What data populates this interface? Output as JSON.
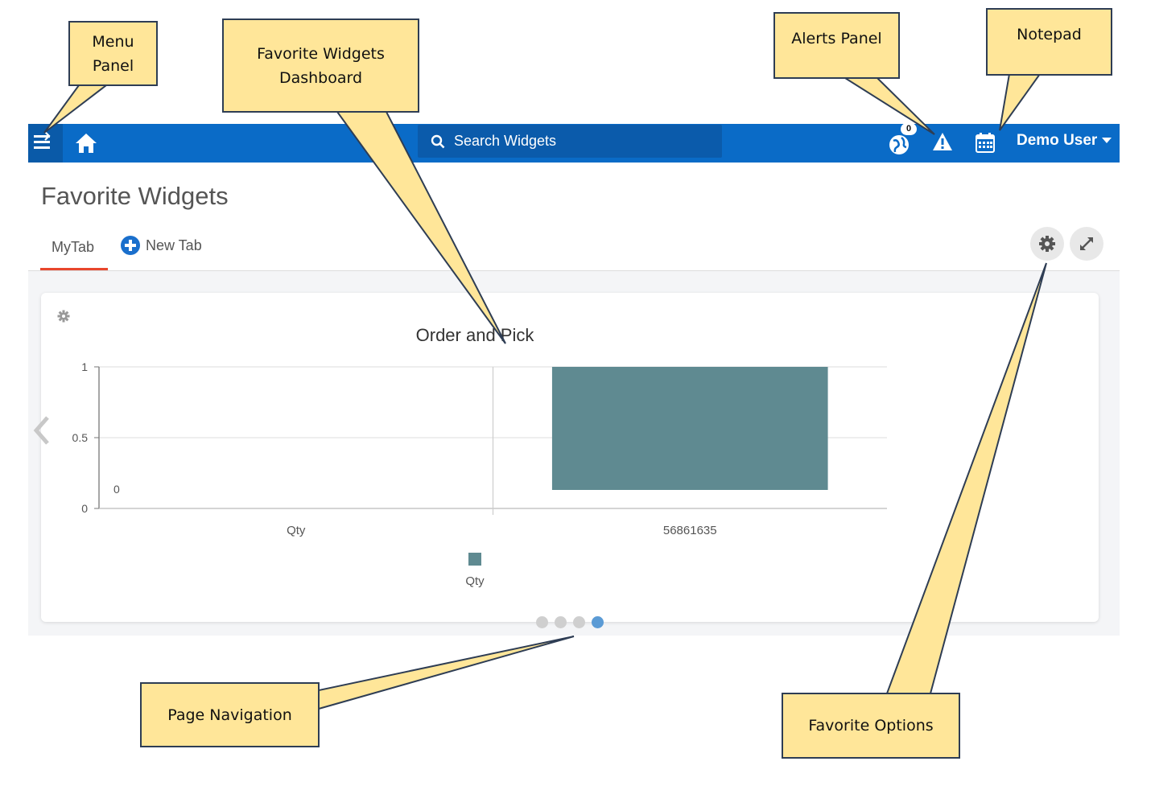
{
  "topbar": {
    "search_placeholder": "Search Widgets",
    "notification_count": "0",
    "user_name": "Demo User",
    "icons": [
      "menu-icon",
      "home-icon",
      "search-icon",
      "globe-icon",
      "alert-icon",
      "calendar-icon",
      "caret-down-icon"
    ],
    "bar_color": "#0a6bc7"
  },
  "page": {
    "title": "Favorite Widgets",
    "tabs": [
      {
        "label": "MyTab",
        "active": true
      }
    ],
    "new_tab_label": "New Tab",
    "tab_active_color": "#e8462c"
  },
  "widget": {
    "chart_data": {
      "type": "bar",
      "title": "Order and Pick",
      "categories": [
        "Qty",
        "56861635"
      ],
      "series": [
        {
          "name": "Qty",
          "values": [
            0,
            1
          ],
          "color": "#5f8a91"
        }
      ],
      "data_labels": [
        "0"
      ],
      "ylim": [
        0,
        1
      ],
      "yticks": [
        0,
        0.5,
        1
      ],
      "ytick_labels": [
        "0",
        "0.5",
        "1"
      ],
      "grid": true,
      "legend": "bottom"
    }
  },
  "pagination": {
    "pages": 4,
    "active_index": 3,
    "active_color": "#5b9bd5"
  },
  "callouts": {
    "menu_panel": "Menu\nPanel",
    "favorite_widgets_dashboard": "Favorite Widgets\nDashboard",
    "alerts_panel": "Alerts Panel",
    "notepad": "Notepad",
    "page_navigation": "Page Navigation",
    "favorite_options": "Favorite Options",
    "color": "#ffe699"
  }
}
